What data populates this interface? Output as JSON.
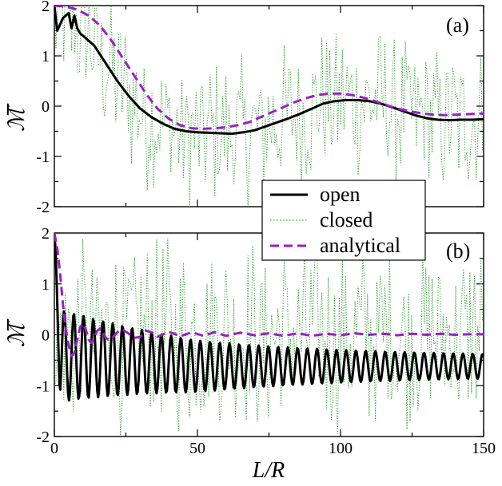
{
  "chart_data": [
    {
      "type": "line",
      "panel_label": "(a)",
      "ylabel": "ℳ̅",
      "xlim": [
        0,
        150
      ],
      "ylim": [
        -2,
        2
      ],
      "xticks": [
        "0",
        "50",
        "100",
        "150"
      ],
      "yticks": [
        "-2",
        "-1",
        "0",
        "1",
        "2"
      ],
      "grid": false,
      "series": [
        {
          "name": "open",
          "color": "#000000",
          "style": "solid",
          "x": [
            0,
            1,
            3,
            5,
            6,
            7,
            8,
            9,
            10,
            12,
            14,
            18,
            22,
            26,
            30,
            34,
            38,
            42,
            46,
            50,
            54,
            58,
            62,
            66,
            70,
            74,
            78,
            82,
            86,
            90,
            94,
            98,
            102,
            106,
            110,
            114,
            118,
            122,
            126,
            130,
            134,
            138,
            142,
            146,
            150
          ],
          "y": [
            2.0,
            1.5,
            1.75,
            1.85,
            1.55,
            1.8,
            1.55,
            1.45,
            1.4,
            1.3,
            1.2,
            0.85,
            0.5,
            0.2,
            -0.05,
            -0.22,
            -0.35,
            -0.45,
            -0.5,
            -0.52,
            -0.53,
            -0.54,
            -0.55,
            -0.52,
            -0.48,
            -0.4,
            -0.32,
            -0.24,
            -0.15,
            -0.05,
            0.05,
            0.1,
            0.12,
            0.12,
            0.1,
            0.05,
            -0.02,
            -0.1,
            -0.18,
            -0.24,
            -0.27,
            -0.28,
            -0.27,
            -0.27,
            -0.26
          ]
        },
        {
          "name": "closed",
          "color": "#2ca02c",
          "style": "dotted"
        },
        {
          "name": "analytical",
          "color": "#9a1ec8",
          "style": "dashed",
          "x": [
            0,
            4,
            8,
            12,
            16,
            20,
            24,
            28,
            32,
            36,
            40,
            44,
            48,
            52,
            56,
            60,
            64,
            68,
            72,
            76,
            80,
            84,
            88,
            92,
            96,
            100,
            104,
            108,
            112,
            116,
            120,
            124,
            128,
            132,
            136,
            140,
            144,
            148,
            150
          ],
          "y": [
            2.0,
            1.98,
            1.92,
            1.8,
            1.6,
            1.3,
            0.95,
            0.6,
            0.25,
            -0.05,
            -0.25,
            -0.38,
            -0.44,
            -0.45,
            -0.44,
            -0.42,
            -0.38,
            -0.32,
            -0.22,
            -0.12,
            -0.02,
            0.08,
            0.16,
            0.22,
            0.25,
            0.25,
            0.22,
            0.17,
            0.1,
            0.02,
            -0.05,
            -0.1,
            -0.14,
            -0.17,
            -0.18,
            -0.17,
            -0.16,
            -0.15,
            -0.15
          ]
        }
      ]
    },
    {
      "type": "line",
      "panel_label": "(b)",
      "ylabel": "ℳ̅",
      "xlabel": "L/R",
      "xlim": [
        0,
        150
      ],
      "ylim": [
        -2,
        2
      ],
      "xticks": [
        "0",
        "50",
        "100",
        "150"
      ],
      "yticks": [
        "-2",
        "-1",
        "0",
        "1",
        "2"
      ],
      "grid": false,
      "series": [
        {
          "name": "open",
          "color": "#000000",
          "style": "solid",
          "period": 3.4,
          "offset_start": -0.4,
          "offset_end": -0.62,
          "amp_start": 0.75,
          "amp_end": 0.18
        },
        {
          "name": "closed",
          "color": "#2ca02c",
          "style": "dotted",
          "mean": 0.0
        },
        {
          "name": "analytical",
          "color": "#9a1ec8",
          "style": "dashed",
          "x": [
            0,
            1,
            2,
            3,
            4,
            5,
            6,
            7,
            8,
            9,
            10,
            11,
            12,
            13,
            14,
            15,
            16,
            17,
            18,
            19,
            20,
            22,
            24,
            26,
            28,
            30,
            32,
            34,
            36,
            40,
            44,
            48,
            52,
            56,
            60,
            65,
            70,
            75,
            80,
            85,
            90,
            95,
            100,
            105,
            110,
            115,
            120,
            125,
            130,
            135,
            140,
            145,
            150
          ],
          "y": [
            2.0,
            1.7,
            1.2,
            0.6,
            0.1,
            -0.2,
            -0.42,
            -0.35,
            -0.1,
            0.15,
            0.22,
            0.1,
            -0.1,
            -0.16,
            -0.05,
            0.08,
            0.12,
            0.05,
            -0.06,
            -0.1,
            -0.08,
            0.05,
            0.1,
            0.02,
            -0.06,
            -0.04,
            0.08,
            0.05,
            -0.04,
            0.06,
            -0.03,
            0.05,
            -0.02,
            0.05,
            -0.02,
            0.04,
            -0.01,
            0.03,
            -0.02,
            0.03,
            -0.02,
            0.02,
            -0.01,
            0.03,
            0.0,
            0.02,
            -0.01,
            0.02,
            0.0,
            0.02,
            0.0,
            0.01,
            0.01
          ]
        }
      ]
    }
  ],
  "legend": {
    "entries": [
      {
        "label": "open",
        "color": "#000000",
        "style": "solid"
      },
      {
        "label": "closed",
        "color": "#2ca02c",
        "style": "dotted"
      },
      {
        "label": "analytical",
        "color": "#9a1ec8",
        "style": "dashed"
      }
    ],
    "placement": "right, between panels"
  }
}
